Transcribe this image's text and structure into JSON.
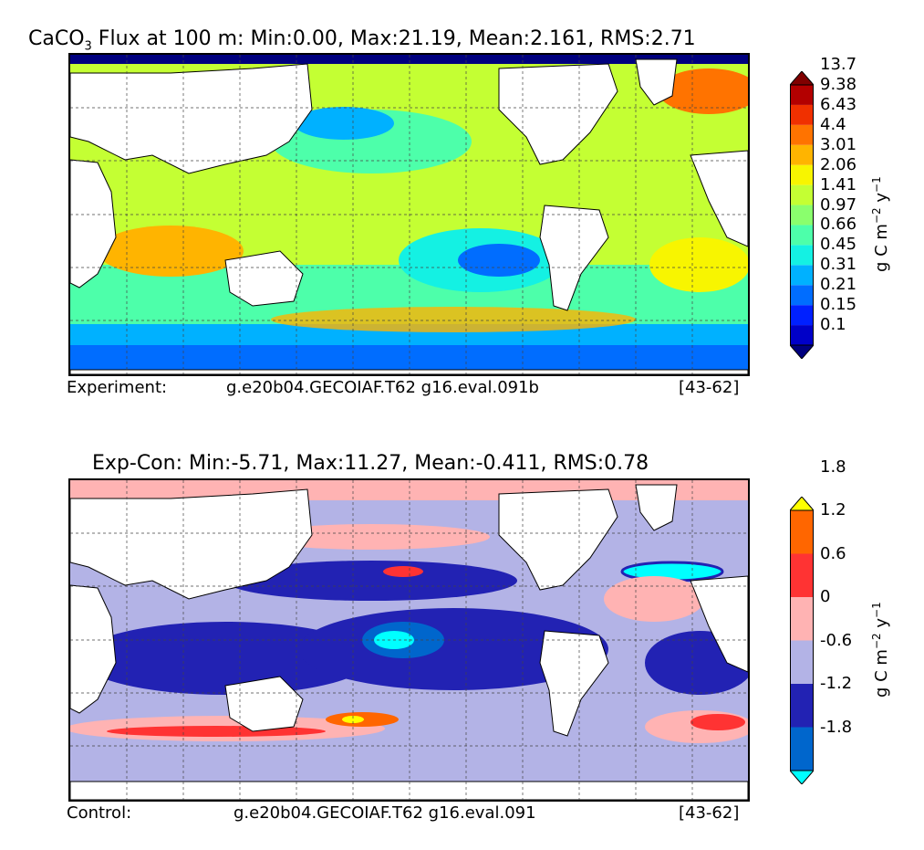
{
  "chart_data": [
    {
      "type": "contour-map",
      "title_parts": {
        "pre": "CaCO",
        "sub": "3",
        "post": " Flux at 100 m: Min:0.00, Max:21.19, Mean:2.161, RMS:2.71"
      },
      "footer": {
        "label": "Experiment:",
        "case": "g.e20b04.GECOIAF.T62 g16.eval.091b",
        "years": "[43-62]"
      },
      "colorbar": {
        "levels": [
          "0.1",
          "0.15",
          "0.21",
          "0.31",
          "0.45",
          "0.66",
          "0.97",
          "1.41",
          "2.06",
          "3.01",
          "4.4",
          "6.43",
          "9.38",
          "13.7"
        ],
        "colors": [
          "#00007f",
          "#0000c8",
          "#0020ff",
          "#006dff",
          "#00b1ff",
          "#14f1e3",
          "#4dffaa",
          "#8aff6d",
          "#c4ff33",
          "#f8f500",
          "#ffb400",
          "#ff7300",
          "#f03000",
          "#b30000",
          "#800000"
        ],
        "unit": {
          "a": "g C m",
          "b": "−2",
          "c": " y",
          "d": "−1"
        }
      }
    },
    {
      "type": "contour-map",
      "title_parts": {
        "pre": "Exp-Con: Min:-5.71, Max:11.27, Mean:-0.411, RMS:0.78",
        "sub": "",
        "post": ""
      },
      "footer": {
        "label": "Control:",
        "case": "g.e20b04.GECOIAF.T62 g16.eval.091",
        "years": "[43-62]"
      },
      "colorbar": {
        "levels": [
          "-1.8",
          "-1.2",
          "-0.6",
          "0",
          "0.6",
          "1.2",
          "1.8"
        ],
        "colors": [
          "#00ffff",
          "#0066cc",
          "#2222b3",
          "#b3b3e6",
          "#ffb3b3",
          "#ff3333",
          "#ff6600",
          "#ffff00"
        ],
        "unit": {
          "a": "g C m",
          "b": "−2",
          "c": " y",
          "d": "−1"
        }
      }
    }
  ]
}
